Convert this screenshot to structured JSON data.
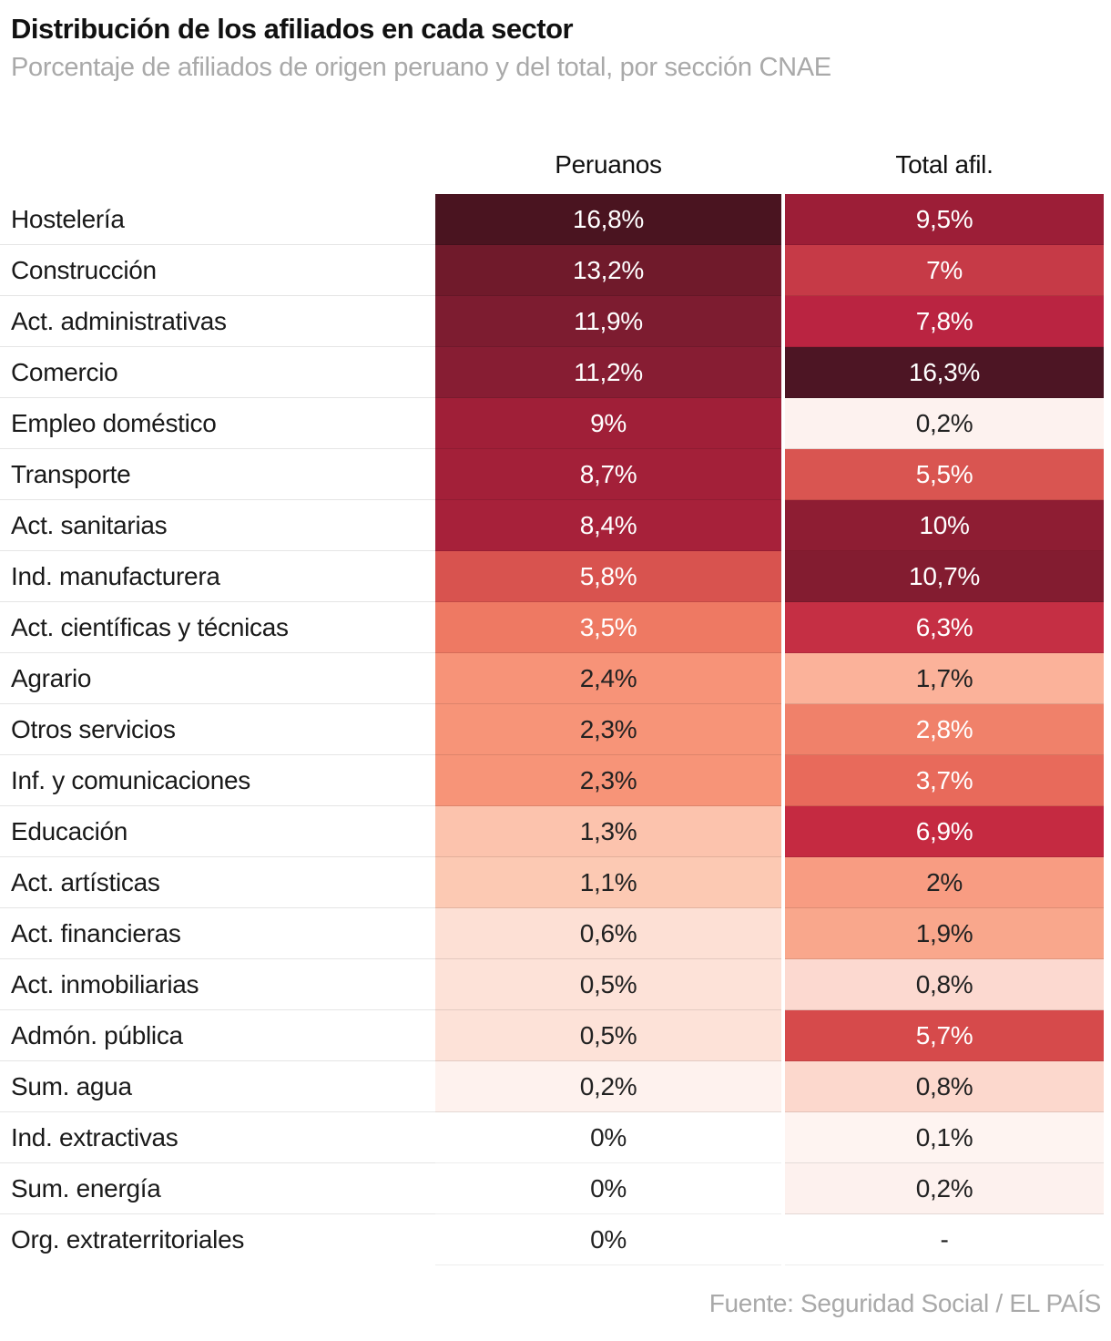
{
  "header": {
    "title": "Distribución de los afiliados en cada sector",
    "subtitle": "Porcentaje de afiliados de origen peruano y del total, por sección CNAE"
  },
  "columns": {
    "col1": "Peruanos",
    "col2": "Total afil."
  },
  "footer": {
    "source": "Fuente: Seguridad Social / EL PAÍS"
  },
  "chart_data": {
    "type": "heatmap",
    "title": "Distribución de los afiliados en cada sector",
    "subtitle": "Porcentaje de afiliados de origen peruano y del total, por sección CNAE",
    "columns": [
      "Peruanos",
      "Total afil."
    ],
    "unit": "%",
    "value_format": "decimal-comma",
    "color_scale": {
      "min_color": "#ffffff",
      "max_color": "#451320",
      "domain": [
        0,
        16.8
      ]
    },
    "series": [
      {
        "name": "Peruanos",
        "values": [
          16.8,
          13.2,
          11.9,
          11.2,
          9,
          8.7,
          8.4,
          5.8,
          3.5,
          2.4,
          2.3,
          2.3,
          1.3,
          1.1,
          0.6,
          0.5,
          0.5,
          0.2,
          0,
          0,
          0
        ]
      },
      {
        "name": "Total afil.",
        "values": [
          9.5,
          7,
          7.8,
          16.3,
          0.2,
          5.5,
          10,
          10.7,
          6.3,
          1.7,
          2.8,
          3.7,
          6.9,
          2,
          1.9,
          0.8,
          5.7,
          0.8,
          0.1,
          0.2,
          null
        ]
      }
    ],
    "rows": [
      {
        "label": "Hostelería",
        "peruanos": "16,8%",
        "total": "9,5%",
        "peruanos_bg": "#4a1420",
        "peruanos_fg": "#ffffff",
        "total_bg": "#9c1e37",
        "total_fg": "#ffffff"
      },
      {
        "label": "Construcción",
        "peruanos": "13,2%",
        "total": "7%",
        "peruanos_bg": "#701a2b",
        "peruanos_fg": "#ffffff",
        "total_bg": "#c63a47",
        "total_fg": "#ffffff"
      },
      {
        "label": "Act. administrativas",
        "peruanos": "11,9%",
        "total": "7,8%",
        "peruanos_bg": "#7d1c30",
        "peruanos_fg": "#ffffff",
        "total_bg": "#ba2441",
        "total_fg": "#ffffff"
      },
      {
        "label": "Comercio",
        "peruanos": "11,2%",
        "total": "16,3%",
        "peruanos_bg": "#871d33",
        "peruanos_fg": "#ffffff",
        "total_bg": "#4d1524",
        "total_fg": "#ffffff"
      },
      {
        "label": "Empleo doméstico",
        "peruanos": "9%",
        "total": "0,2%",
        "peruanos_bg": "#a01f38",
        "peruanos_fg": "#ffffff",
        "total_bg": "#fdf2ef",
        "total_fg": "#222222"
      },
      {
        "label": "Transporte",
        "peruanos": "8,7%",
        "total": "5,5%",
        "peruanos_bg": "#a32039",
        "peruanos_fg": "#ffffff",
        "total_bg": "#d95551",
        "total_fg": "#ffffff"
      },
      {
        "label": "Act. sanitarias",
        "peruanos": "8,4%",
        "total": "10%",
        "peruanos_bg": "#a7213a",
        "peruanos_fg": "#ffffff",
        "total_bg": "#8e1d33",
        "total_fg": "#ffffff"
      },
      {
        "label": "Ind. manufacturera",
        "peruanos": "5,8%",
        "total": "10,7%",
        "peruanos_bg": "#d8534f",
        "peruanos_fg": "#ffffff",
        "total_bg": "#831c30",
        "total_fg": "#ffffff"
      },
      {
        "label": "Act. científicas y técnicas",
        "peruanos": "3,5%",
        "total": "6,3%",
        "peruanos_bg": "#ee7963",
        "peruanos_fg": "#ffffff",
        "total_bg": "#c52f44",
        "total_fg": "#ffffff"
      },
      {
        "label": "Agrario",
        "peruanos": "2,4%",
        "total": "1,7%",
        "peruanos_bg": "#f79378",
        "peruanos_fg": "#222222",
        "total_bg": "#fbb29a",
        "total_fg": "#222222"
      },
      {
        "label": "Otros servicios",
        "peruanos": "2,3%",
        "total": "2,8%",
        "peruanos_bg": "#f79478",
        "peruanos_fg": "#222222",
        "total_bg": "#f0816a",
        "total_fg": "#ffffff"
      },
      {
        "label": "Inf. y comunicaciones",
        "peruanos": "2,3%",
        "total": "3,7%",
        "peruanos_bg": "#f79478",
        "peruanos_fg": "#222222",
        "total_bg": "#e86a5b",
        "total_fg": "#ffffff"
      },
      {
        "label": "Educación",
        "peruanos": "1,3%",
        "total": "6,9%",
        "peruanos_bg": "#fcc3ad",
        "peruanos_fg": "#222222",
        "total_bg": "#c52a41",
        "total_fg": "#ffffff"
      },
      {
        "label": "Act. artísticas",
        "peruanos": "1,1%",
        "total": "2%",
        "peruanos_bg": "#fcc9b3",
        "peruanos_fg": "#222222",
        "total_bg": "#f89c82",
        "total_fg": "#222222"
      },
      {
        "label": "Act. financieras",
        "peruanos": "0,6%",
        "total": "1,9%",
        "peruanos_bg": "#fde0d5",
        "peruanos_fg": "#222222",
        "total_bg": "#f9a78c",
        "total_fg": "#222222"
      },
      {
        "label": "Act. inmobiliarias",
        "peruanos": "0,5%",
        "total": "0,8%",
        "peruanos_bg": "#fde2d8",
        "peruanos_fg": "#222222",
        "total_bg": "#fcd9d0",
        "total_fg": "#222222"
      },
      {
        "label": "Admón. pública",
        "peruanos": "0,5%",
        "total": "5,7%",
        "peruanos_bg": "#fde2d8",
        "peruanos_fg": "#222222",
        "total_bg": "#d64a4b",
        "total_fg": "#ffffff"
      },
      {
        "label": "Sum. agua",
        "peruanos": "0,2%",
        "total": "0,8%",
        "peruanos_bg": "#fef2ee",
        "peruanos_fg": "#222222",
        "total_bg": "#fcd8cd",
        "total_fg": "#222222"
      },
      {
        "label": "Ind. extractivas",
        "peruanos": "0%",
        "total": "0,1%",
        "peruanos_bg": "#ffffff",
        "peruanos_fg": "#222222",
        "total_bg": "#fef4f1",
        "total_fg": "#222222"
      },
      {
        "label": "Sum. energía",
        "peruanos": "0%",
        "total": "0,2%",
        "peruanos_bg": "#ffffff",
        "peruanos_fg": "#222222",
        "total_bg": "#fdf1ee",
        "total_fg": "#222222"
      },
      {
        "label": "Org. extraterritoriales",
        "peruanos": "0%",
        "total": "-",
        "peruanos_bg": "#ffffff",
        "peruanos_fg": "#222222",
        "total_bg": "#ffffff",
        "total_fg": "#222222"
      }
    ]
  }
}
